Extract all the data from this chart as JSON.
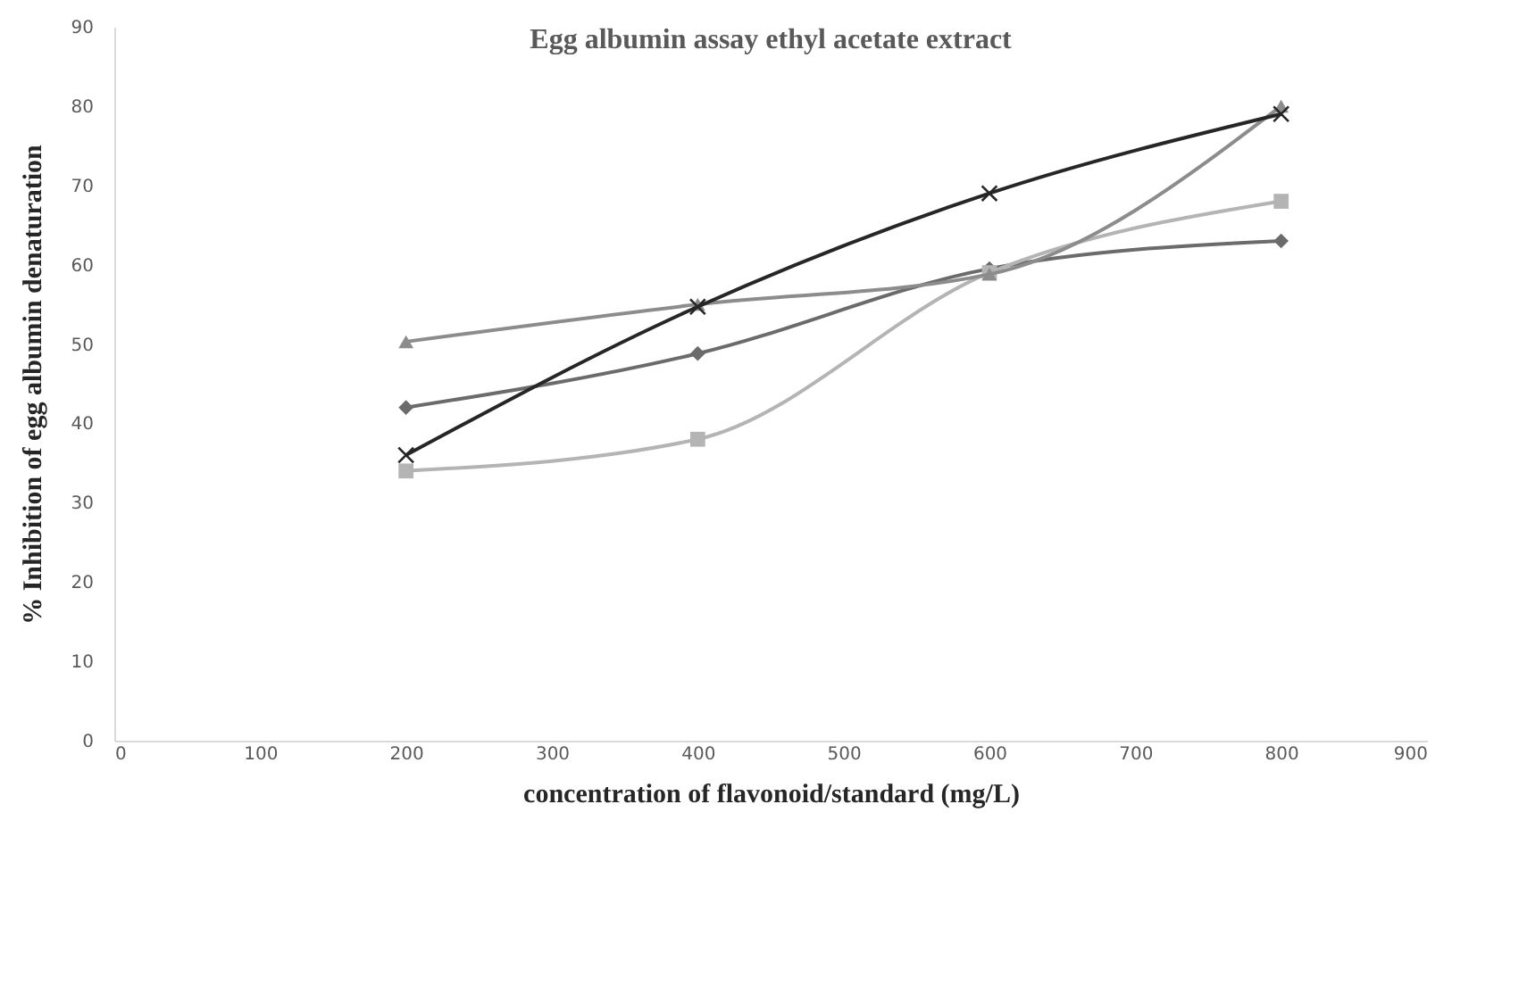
{
  "chart_data": {
    "type": "line",
    "title": "Egg albumin  assay ethyl acetate extract",
    "xlabel": "concentration  of flavonoid/standard  (mg/L)",
    "ylabel": "% Inhibition  of egg albumin  denaturation",
    "x": [
      200,
      400,
      600,
      800
    ],
    "series": [
      {
        "color": "#6b6b6b",
        "marker": "diamond",
        "values": [
          42,
          48.8,
          59.5,
          63
        ]
      },
      {
        "color": "#b4b4b4",
        "marker": "square",
        "values": [
          34,
          38,
          59,
          68
        ]
      },
      {
        "color": "#8c8c8c",
        "marker": "triangle",
        "values": [
          50.3,
          55,
          58.8,
          80
        ]
      },
      {
        "color": "#262626",
        "marker": "cross",
        "values": [
          36,
          54.7,
          69,
          79
        ]
      }
    ],
    "xlim": [
      0,
      900
    ],
    "xticks": [
      0,
      100,
      200,
      300,
      400,
      500,
      600,
      700,
      800,
      900
    ],
    "ylim": [
      0,
      90
    ],
    "yticks": [
      0,
      10,
      20,
      30,
      40,
      50,
      60,
      70,
      80,
      90
    ],
    "grid": false,
    "legend": false
  }
}
